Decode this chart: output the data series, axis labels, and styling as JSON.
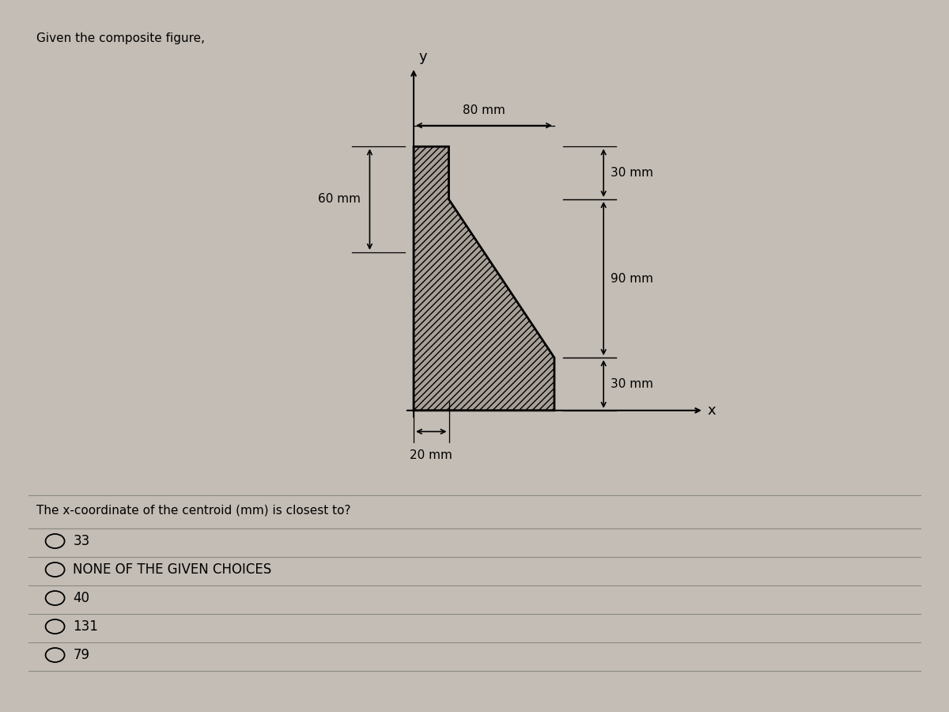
{
  "title": "Given the composite figure,",
  "question": "The x-coordinate of the centroid (mm) is closest to?",
  "choices": [
    "33",
    "NONE OF THE GIVEN CHOICES",
    "40",
    "131",
    "79"
  ],
  "shape_vx": [
    0,
    80,
    80,
    20,
    20,
    0,
    0
  ],
  "shape_vy": [
    0,
    0,
    30,
    120,
    150,
    150,
    0
  ],
  "dim_80mm": "80 mm",
  "dim_60mm": "60 mm",
  "dim_30mm_top": "30 mm",
  "dim_90mm": "90 mm",
  "dim_30mm_bot": "30 mm",
  "dim_20mm": "20 mm",
  "label_y": "y",
  "label_x": "x",
  "hatch": "////",
  "shape_facecolor": "#a8a098",
  "shape_edgecolor": "#000000",
  "bg_color": "#c4bdb5",
  "line_color": "#888880",
  "font_size_title": 11,
  "font_size_question": 11,
  "font_size_choices": 12,
  "font_size_dims": 11,
  "font_size_axis": 13
}
